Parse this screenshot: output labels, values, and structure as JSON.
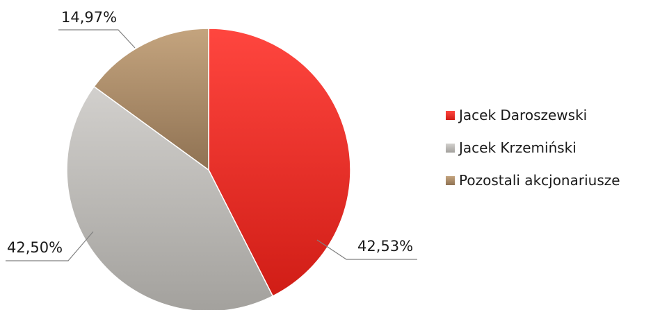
{
  "chart_data": {
    "type": "pie",
    "title": "",
    "legend_position": "right",
    "series": [
      {
        "name": "Jacek Daroszewski",
        "value": 42.53,
        "label": "42,53%",
        "color": "#e8302a"
      },
      {
        "name": "Jacek Krzemiński",
        "value": 42.5,
        "label": "42,50%",
        "color": "#b9b7b3"
      },
      {
        "name": "Pozostali akcjonariusze",
        "value": 14.97,
        "label": "14,97%",
        "color": "#b0906c"
      }
    ]
  }
}
